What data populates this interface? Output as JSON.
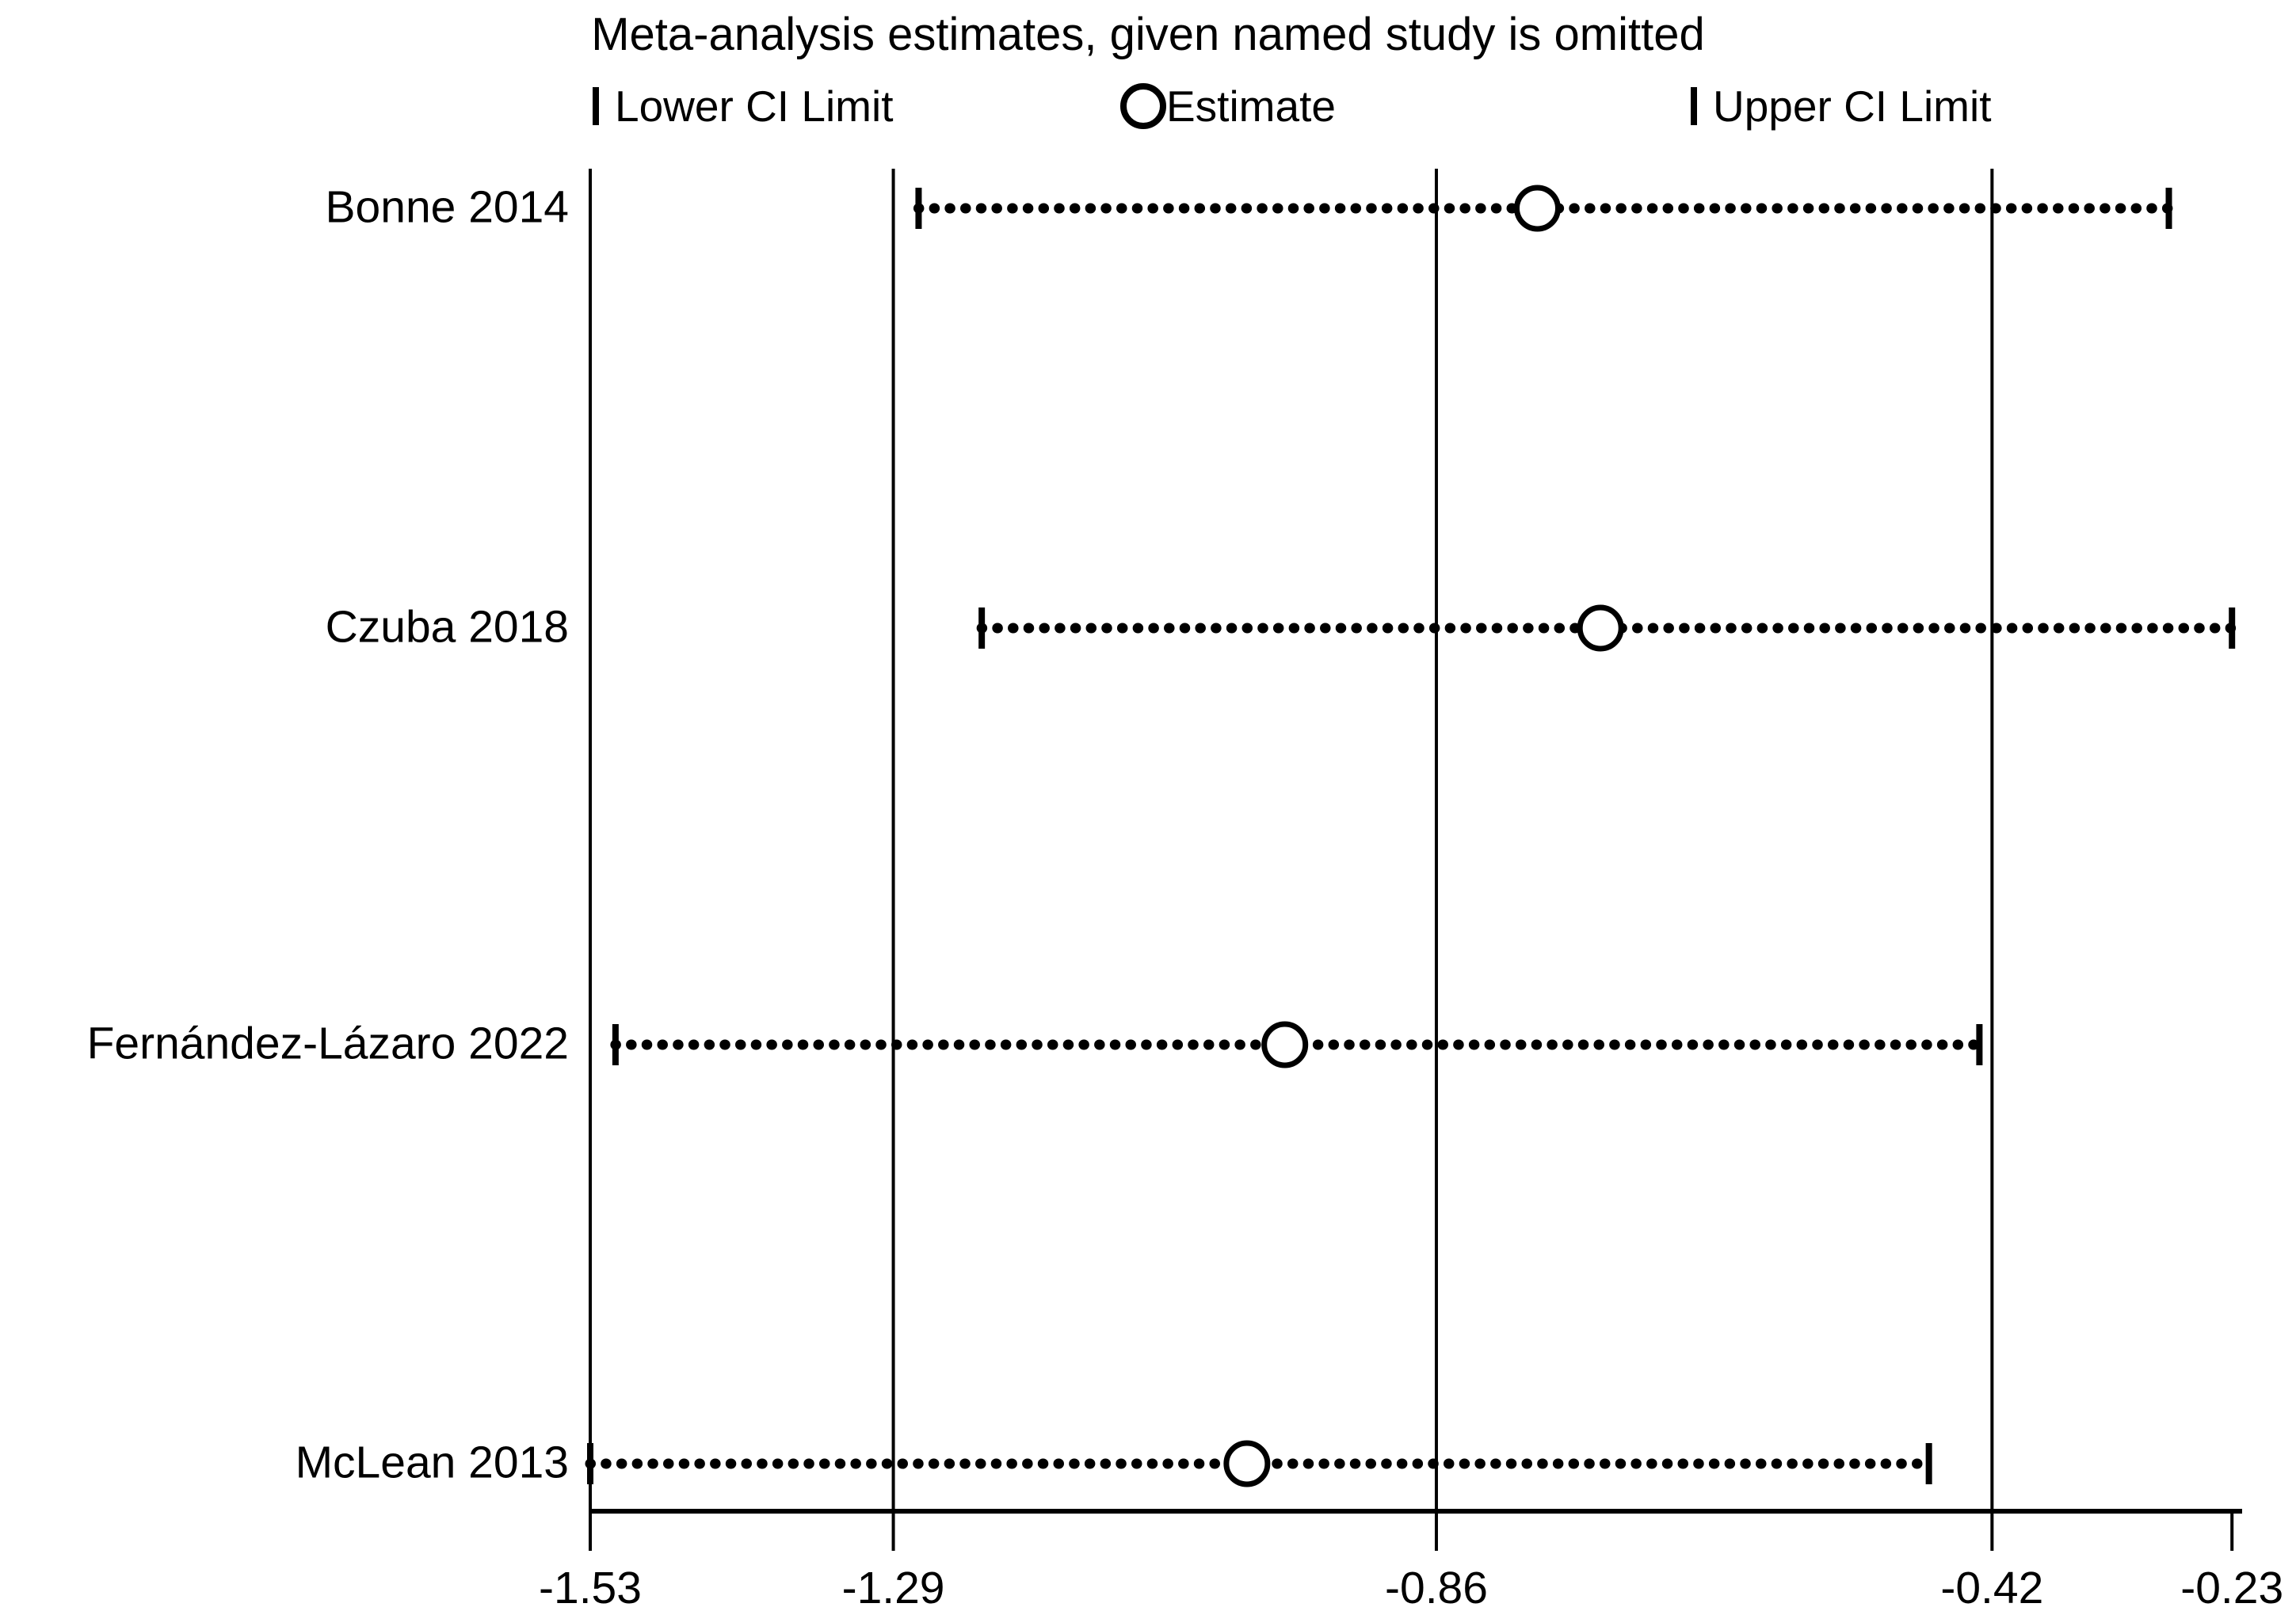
{
  "title": "Meta-analysis estimates, given named study is omitted",
  "legend": {
    "lower": "Lower CI Limit",
    "estimate": "Estimate",
    "upper": "Upper CI Limit"
  },
  "chart_data": {
    "type": "scatter",
    "subtype": "leave-one-out meta-analysis sensitivity forest plot",
    "title": "Meta-analysis estimates, given named study is omitted",
    "legend_entries": [
      "Lower CI Limit",
      "Estimate",
      "Upper CI Limit"
    ],
    "legend_position": "top",
    "grid": "vertical reference lines at overall estimate and overall CI limits",
    "xlim": [
      -1.53,
      -0.23
    ],
    "x_ticks": [
      -1.53,
      -1.29,
      -0.86,
      -0.42,
      -0.23
    ],
    "x_tick_labels": [
      "-1.53",
      "-1.29",
      "-0.86",
      "-0.42",
      "-0.23"
    ],
    "reference_lines": [
      -1.53,
      -1.29,
      -0.86,
      -0.42
    ],
    "categories": [
      "Bonne 2014",
      "Czuba 2018",
      "Fernández-Lázaro 2022",
      "McLean 2013"
    ],
    "series": [
      {
        "name": "Bonne 2014",
        "lower_ci": -1.27,
        "estimate": -0.78,
        "upper_ci": -0.28
      },
      {
        "name": "Czuba 2018",
        "lower_ci": -1.22,
        "estimate": -0.73,
        "upper_ci": -0.23
      },
      {
        "name": "Fernández-Lázaro 2022",
        "lower_ci": -1.51,
        "estimate": -0.98,
        "upper_ci": -0.43
      },
      {
        "name": "McLean 2013",
        "lower_ci": -1.53,
        "estimate": -1.01,
        "upper_ci": -0.47
      }
    ]
  }
}
